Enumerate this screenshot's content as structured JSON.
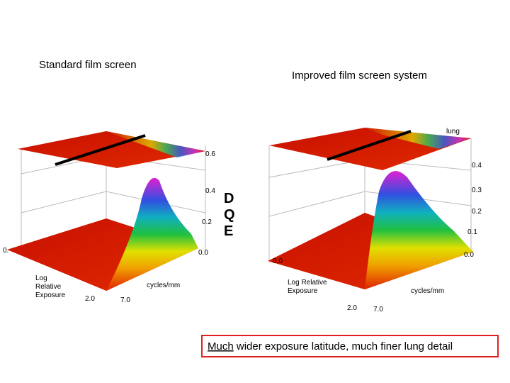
{
  "titles": {
    "left": "Standard film screen",
    "right": "Improved film screen system"
  },
  "left_plot": {
    "z_ticks": [
      "0.6",
      "0.4",
      "0.2",
      "0.0"
    ],
    "cut_label": "0.",
    "exposure_label": [
      "Log",
      "Relative",
      "Exposure"
    ],
    "exposure_tick": "2.0",
    "frequency_tick": "7.0",
    "frequency_label": "cycles/mm"
  },
  "axis_title": [
    "D",
    "Q",
    "E"
  ],
  "right_plot": {
    "annotation": "lung",
    "z_ticks": [
      "0.4",
      "0.3",
      "0.2",
      "0.1",
      "0.0"
    ],
    "floor_tick": "0.0",
    "exposure_label": [
      "Log Relative",
      "Exposure"
    ],
    "exposure_tick": "2.0",
    "frequency_tick": "7.0",
    "frequency_label": "cycles/mm"
  },
  "caption": {
    "emphasis": "Much",
    "text": "wider exposure latitude, much finer lung detail"
  }
}
